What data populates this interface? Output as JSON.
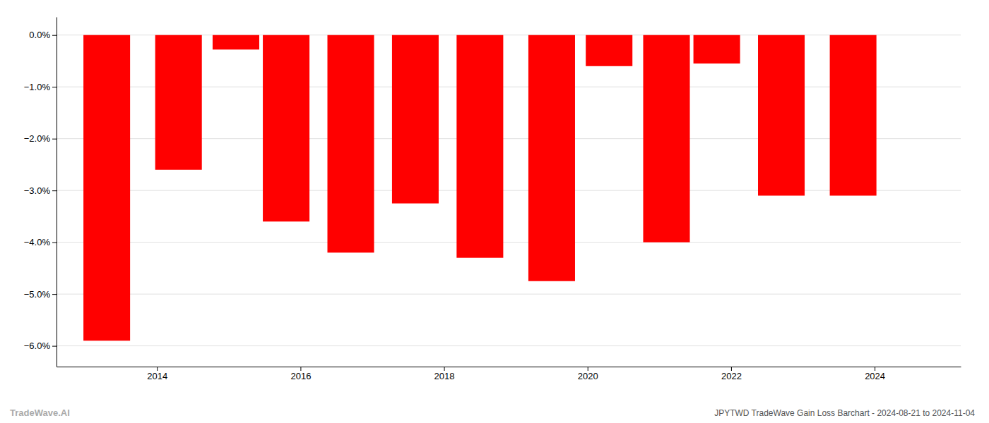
{
  "chart_data": {
    "type": "bar",
    "title": "JPYTWD TradeWave Gain Loss Barchart - 2024-08-21 to 2024-11-04",
    "annotations": [
      "TradeWave.AI"
    ],
    "x": [
      2013.3,
      2014.3,
      2015.1,
      2015.8,
      2016.7,
      2017.6,
      2018.5,
      2019.5,
      2020.3,
      2021.1,
      2021.8,
      2022.7,
      2023.7
    ],
    "values": [
      -5.9,
      -2.6,
      -0.28,
      -3.6,
      -4.2,
      -3.25,
      -4.3,
      -4.75,
      -0.6,
      -4.0,
      -0.55,
      -3.1,
      -3.1
    ],
    "color": "#ff0000",
    "xlim": [
      2012.6,
      2025.2
    ],
    "xticks": [
      2014,
      2016,
      2018,
      2020,
      2022,
      2024
    ],
    "ylim": [
      -6.4,
      0.35
    ],
    "yticks": [
      {
        "value": 0.0,
        "label": "0.0%"
      },
      {
        "value": -1.0,
        "label": "−1.0%"
      },
      {
        "value": -2.0,
        "label": "−2.0%"
      },
      {
        "value": -3.0,
        "label": "−3.0%"
      },
      {
        "value": -4.0,
        "label": "−4.0%"
      },
      {
        "value": -5.0,
        "label": "−5.0%"
      },
      {
        "value": -6.0,
        "label": "−6.0%"
      }
    ],
    "grid": true
  }
}
